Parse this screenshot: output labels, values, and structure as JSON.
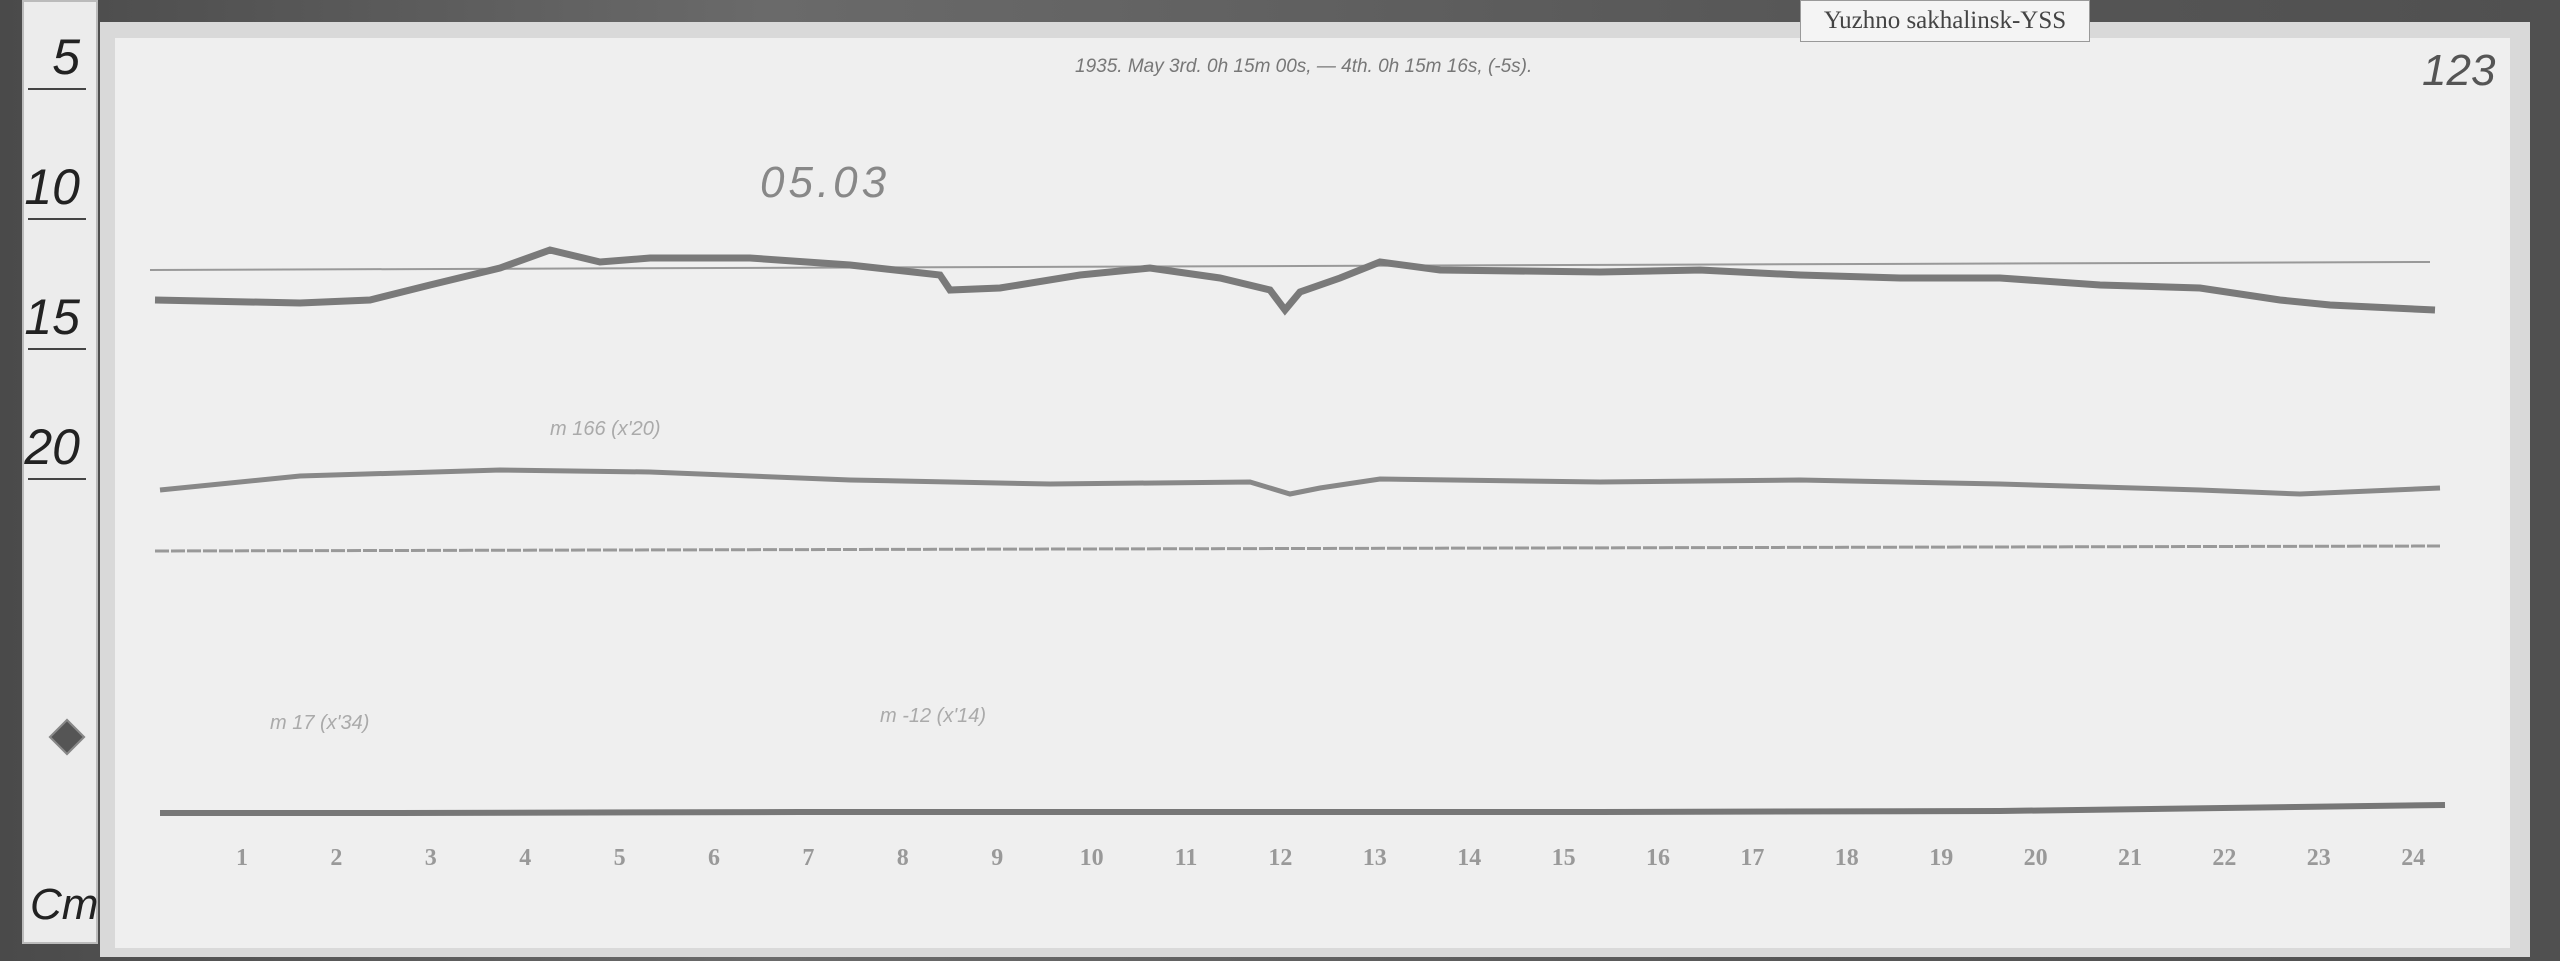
{
  "station_label": "Yuzhno sakhalinsk-YSS",
  "header_text": "1935. May 3rd. 0h 15m 00s, — 4th. 0h 15m 16s, (-5s).",
  "page_number": "123",
  "date_note": "05.03",
  "pencil_notes": [
    "m 166 (x'20)",
    "m 17 (x'34)",
    "m -12 (x'14)"
  ],
  "ruler": {
    "marks": [
      "5",
      "10",
      "15",
      "20"
    ],
    "unit": "Cm"
  },
  "hour_labels": [
    "1",
    "2",
    "3",
    "4",
    "5",
    "6",
    "7",
    "8",
    "9",
    "10",
    "11",
    "12",
    "13",
    "14",
    "15",
    "16",
    "17",
    "18",
    "19",
    "20",
    "21",
    "22",
    "23",
    "24"
  ],
  "colors": {
    "trace": "#777777",
    "paper": "#efefef",
    "background": "#5a5a5a"
  }
}
